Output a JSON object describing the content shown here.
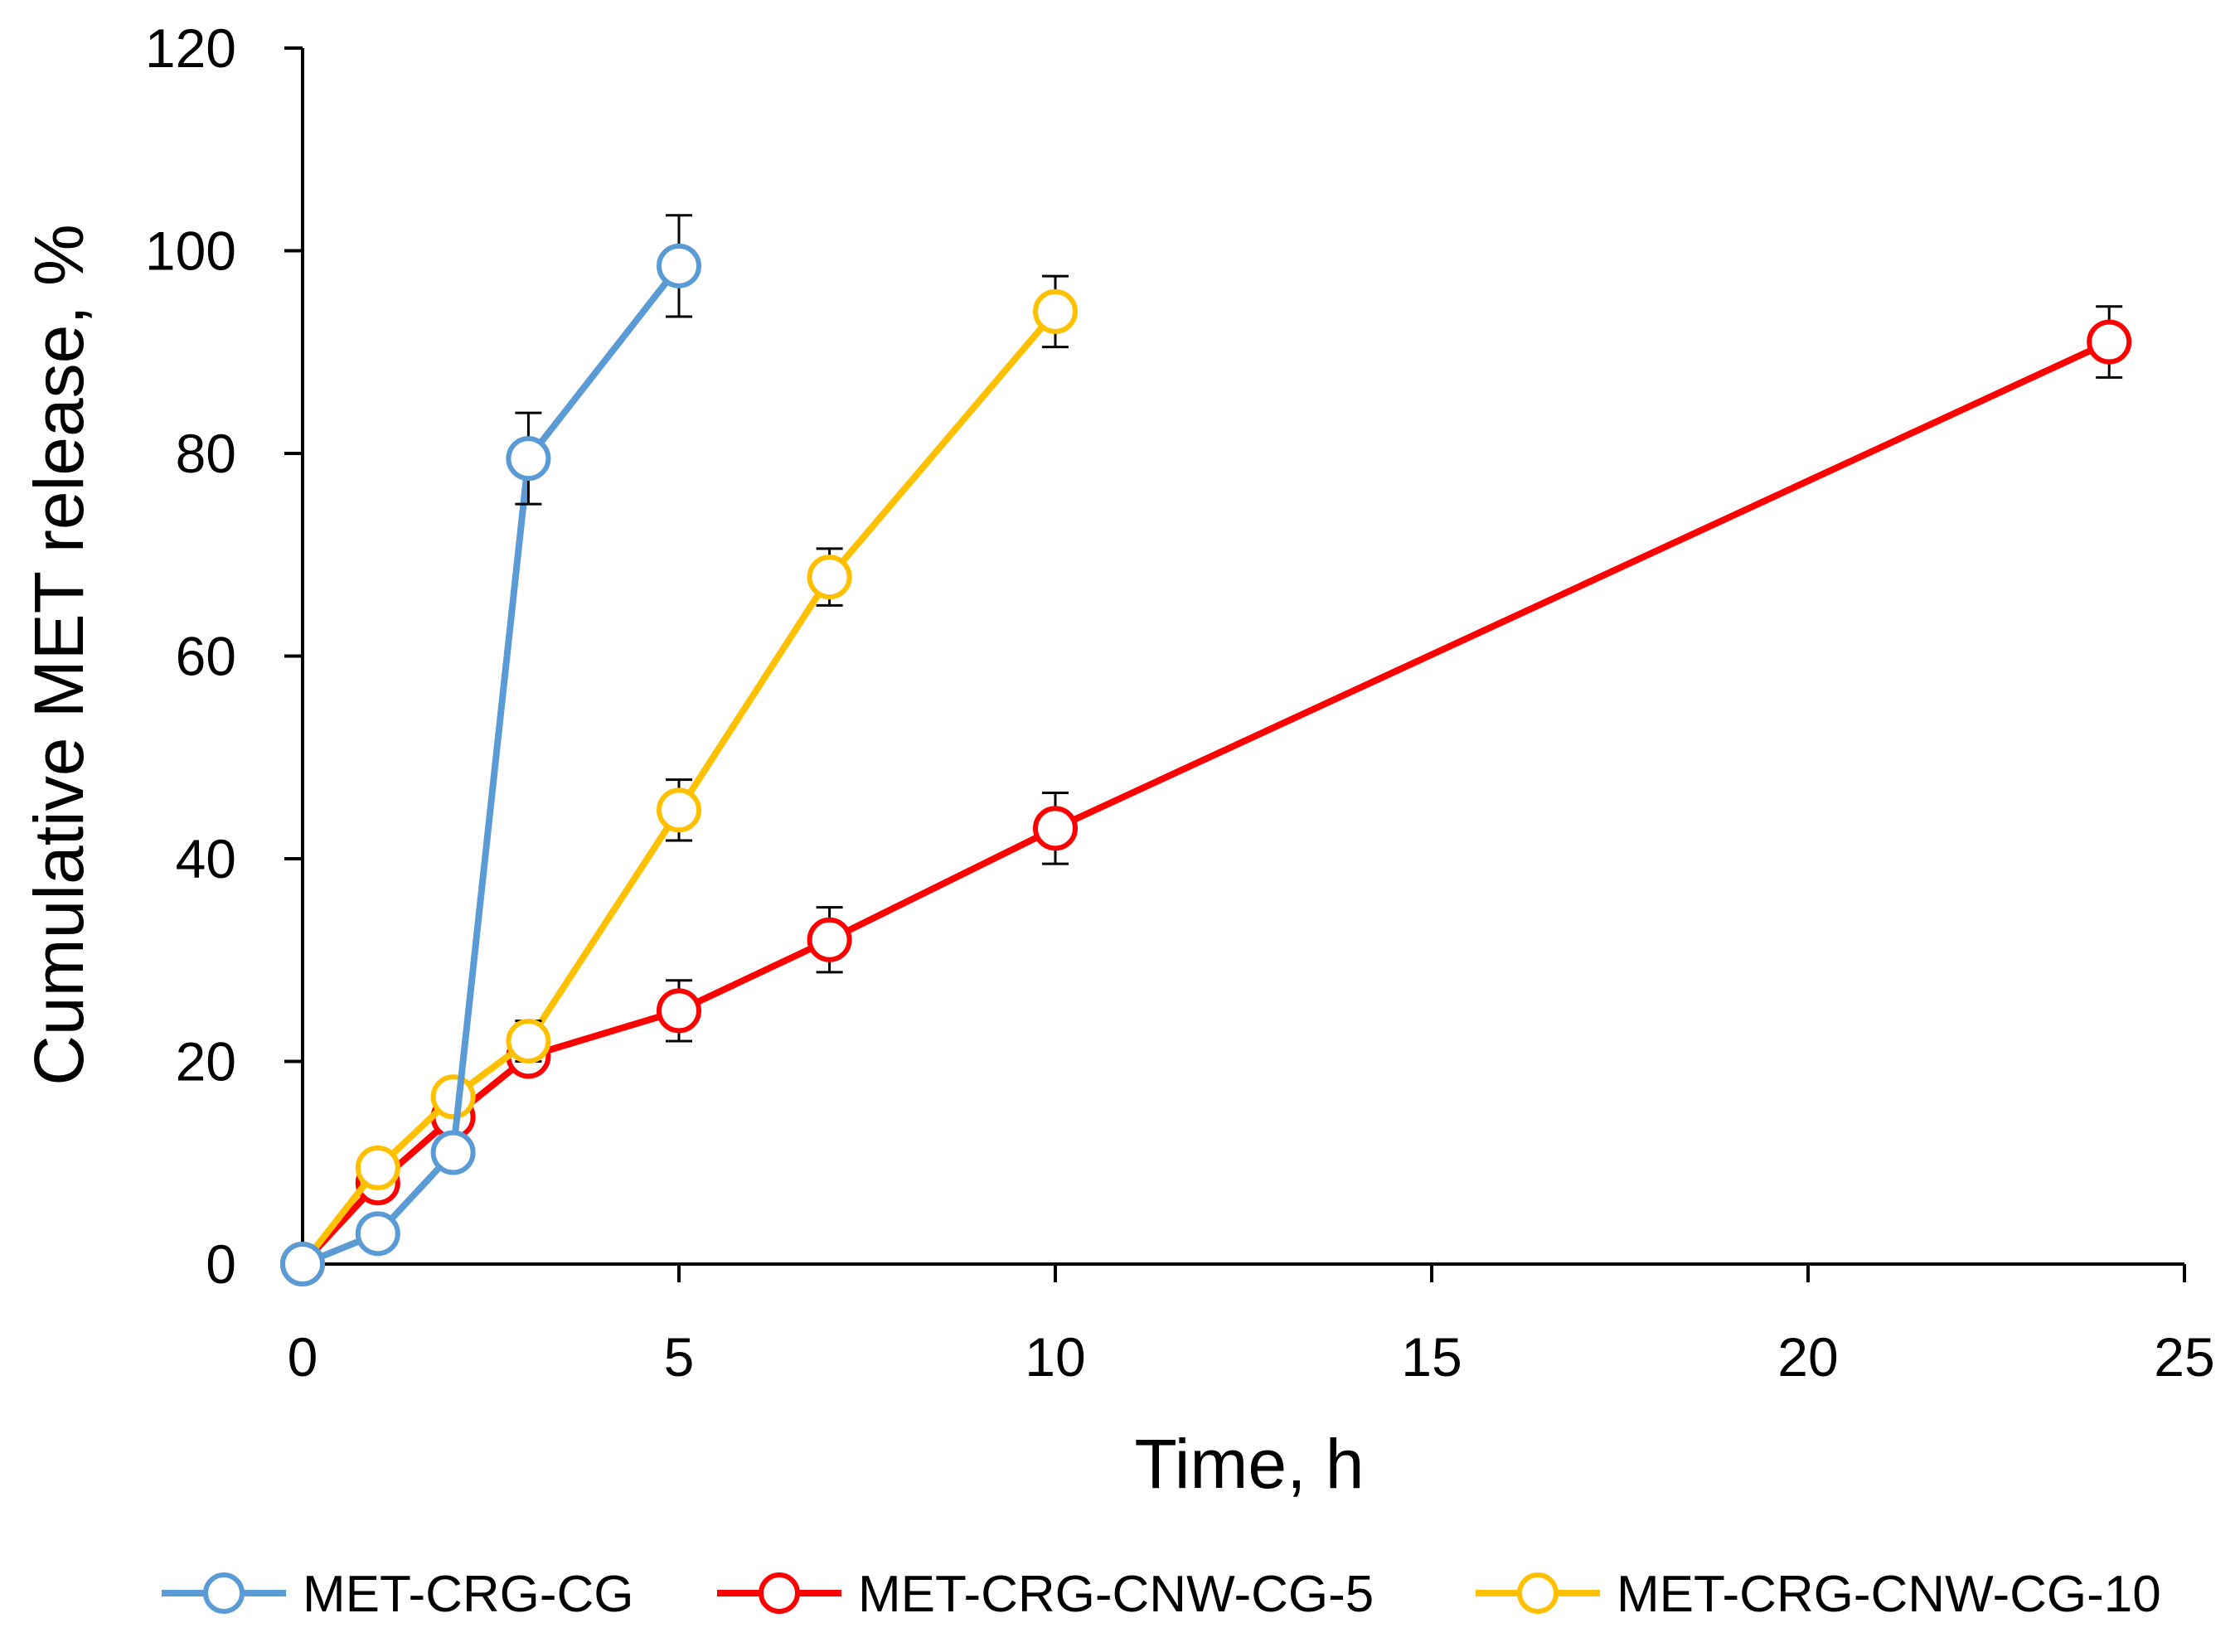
{
  "chart_data": {
    "type": "line",
    "title": "",
    "xlabel": "Time, h",
    "ylabel": "Cumulative MET release, %",
    "xlim": [
      0,
      25
    ],
    "ylim": [
      0,
      120
    ],
    "xticks": [
      0,
      5,
      10,
      15,
      20,
      25
    ],
    "yticks": [
      0,
      20,
      40,
      60,
      80,
      100,
      120
    ],
    "grid": false,
    "legend_position": "bottom",
    "series": [
      {
        "name": "MET-CRG-CG",
        "color": "#5b9bd5",
        "x": [
          0,
          1,
          2,
          3,
          5
        ],
        "y": [
          0,
          3,
          11,
          79.5,
          98.5
        ],
        "error": [
          0,
          0,
          1,
          4.5,
          5
        ]
      },
      {
        "name": "MET-CRG-CNW-CG-5",
        "color": "#ff0000",
        "x": [
          0,
          1,
          2,
          3,
          5,
          7,
          10,
          24
        ],
        "y": [
          0,
          8,
          14.5,
          20.5,
          25,
          32,
          43,
          91
        ],
        "error": [
          0,
          1,
          1.5,
          1.5,
          3,
          3.2,
          3.5,
          3.5
        ]
      },
      {
        "name": "MET-CRG-CNW-CG-10",
        "color": "#ffc000",
        "x": [
          0,
          1,
          2,
          3,
          5,
          7,
          10
        ],
        "y": [
          0,
          9.5,
          16.5,
          22,
          44.8,
          67.8,
          94
        ],
        "error": [
          0,
          1,
          1.5,
          2,
          3,
          2.8,
          3.5
        ]
      }
    ]
  }
}
